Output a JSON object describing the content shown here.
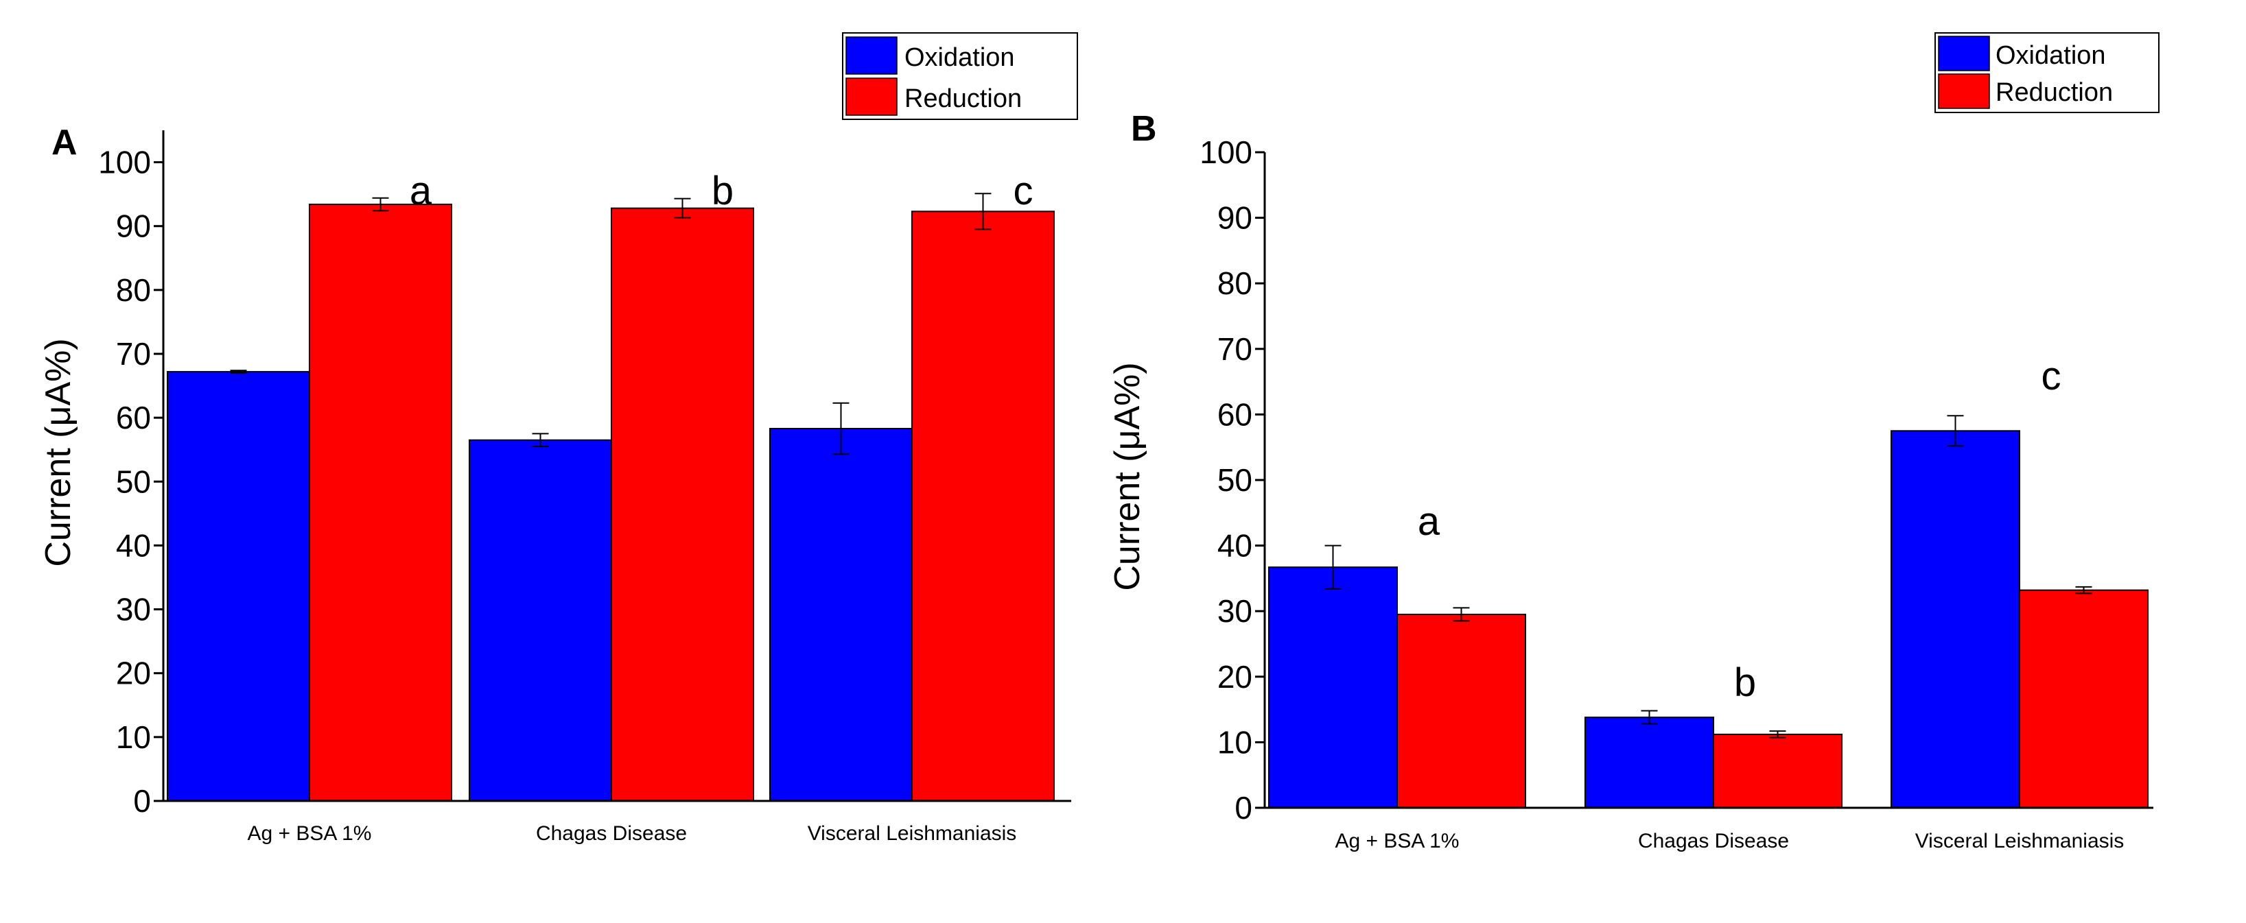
{
  "figure": {
    "series_colors": {
      "Oxidation": "#0000ff",
      "Reduction": "#ff0000"
    }
  },
  "chart_data": [
    {
      "panel": "A",
      "type": "bar",
      "categories": [
        "Ag + BSA 1%",
        "Chagas Disease",
        "Visceral Leishmaniasis"
      ],
      "series": [
        {
          "name": "Oxidation",
          "color": "#0000ff",
          "values": [
            67.2,
            56.5,
            58.3
          ],
          "errors": [
            0.2,
            1.0,
            4.0
          ]
        },
        {
          "name": "Reduction",
          "color": "#ff0000",
          "values": [
            93.4,
            92.8,
            92.3
          ],
          "errors": [
            1.0,
            1.5,
            2.8
          ]
        }
      ],
      "ylabel": "Current (μA%)",
      "xlabel": "",
      "ylim": [
        0,
        105
      ],
      "yticks": [
        0,
        10,
        20,
        30,
        40,
        50,
        60,
        70,
        80,
        90,
        100
      ],
      "annotations": [
        "a",
        "b",
        "c"
      ],
      "legend": {
        "position": "top-right",
        "entries": [
          "Oxidation",
          "Reduction"
        ]
      }
    },
    {
      "panel": "B",
      "type": "bar",
      "categories": [
        "Ag + BSA 1%",
        "Chagas Disease",
        "Visceral Leishmaniasis"
      ],
      "series": [
        {
          "name": "Oxidation",
          "color": "#0000ff",
          "values": [
            36.7,
            13.8,
            57.5
          ],
          "errors": [
            3.3,
            1.0,
            2.3
          ]
        },
        {
          "name": "Reduction",
          "color": "#ff0000",
          "values": [
            29.5,
            11.2,
            33.2
          ],
          "errors": [
            1.0,
            0.5,
            0.5
          ]
        }
      ],
      "ylabel": "Current (μA%)",
      "xlabel": "",
      "ylim": [
        0,
        100
      ],
      "yticks": [
        0,
        10,
        20,
        30,
        40,
        50,
        60,
        70,
        80,
        90,
        100
      ],
      "annotations": [
        "a",
        "b",
        "c"
      ],
      "legend": {
        "position": "top-right",
        "entries": [
          "Oxidation",
          "Reduction"
        ]
      }
    }
  ]
}
